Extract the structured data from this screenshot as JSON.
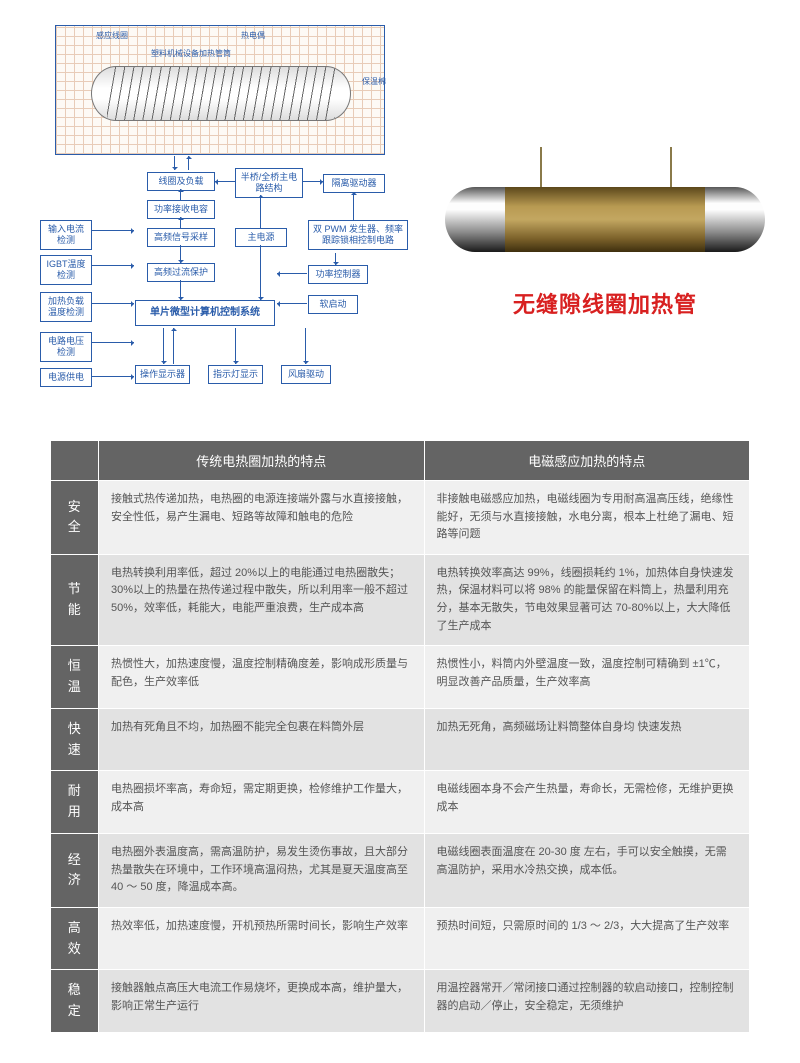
{
  "diagram": {
    "schematic": {
      "top_label_left": "感应线圈",
      "top_label_right": "热电偶",
      "inner_label": "塑料机械设备加热管筒",
      "right_label": "保温棉"
    },
    "blocks": {
      "coil_load": "线圈及负载",
      "bridge": "半桥/全桥主电路结构",
      "iso_drive": "隔离驱动器",
      "power_comp": "功率接收电容",
      "hf_sample": "高频信号采样",
      "main_power": "主电源",
      "pwm": "双 PWM 发生器、频率跟踪锁相控制电路",
      "input_current": "输入电流检测",
      "igbt_temp": "IGBT温度检测",
      "hf_protect": "高频过流保护",
      "power_ctrl": "功率控制器",
      "mcu": "单片微型计算机控制系统",
      "heat_temp": "加热负载温度检测",
      "soft_start": "软启动",
      "volt_detect": "电路电压检测",
      "power_supply": "电源供电",
      "display": "操作显示器",
      "led": "指示灯显示",
      "fan": "风扇驱动"
    }
  },
  "product": {
    "title": "无缝隙线圈加热管"
  },
  "table": {
    "headers": {
      "blank": "",
      "col1": "传统电热圈加热的特点",
      "col2": "电磁感应加热的特点"
    },
    "rows": [
      {
        "label": "安全",
        "a": "接触式热传递加热，电热圈的电源连接端外露与水直接接触，安全性低，易产生漏电、短路等故障和触电的危险",
        "b": "非接触电磁感应加热，电磁线圈为专用耐高温高压线，绝缘性能好，无须与水直接接触，水电分离，根本上杜绝了漏电、短路等问题"
      },
      {
        "label": "节能",
        "a": "电热转换利用率低，超过 20%以上的电能通过电热圈散失；30%以上的热量在热传递过程中散失，所以利用率一般不超过 50%，效率低，耗能大，电能严重浪费，生产成本高",
        "b": "电热转换效率高达 99%，线圈损耗约 1%，加热体自身快速发热，保温材料可以将 98% 的能量保留在料筒上，热量利用充分，基本无散失，节电效果显著可达 70-80%以上，大大降低了生产成本"
      },
      {
        "label": "恒温",
        "a": "热惯性大，加热速度慢，温度控制精确度差，影响成形质量与配色，生产效率低",
        "b": "热惯性小，料筒内外壁温度一致，温度控制可精确到 ±1℃，明显改善产品质量，生产效率高"
      },
      {
        "label": "快速",
        "a": "加热有死角且不均，加热圈不能完全包裹在料筒外层",
        "b": "加热无死角，高频磁场让料筒整体自身均 快速发热"
      },
      {
        "label": "耐用",
        "a": "电热圈损坏率高，寿命短，需定期更换，检修维护工作量大，成本高",
        "b": "电磁线圈本身不会产生热量，寿命长，无需检修，无维护更换成本"
      },
      {
        "label": "经济",
        "a": "电热圈外表温度高，需高温防护，易发生烫伤事故，且大部分热量散失在环境中，工作环境高温闷热，尤其是夏天温度高至 40 ～ 50 度，降温成本高。",
        "b": "电磁线圈表面温度在 20-30 度 左右，手可以安全触摸，无需高温防护，采用水冷热交换，成本低。"
      },
      {
        "label": "高效",
        "a": "热效率低，加热速度慢，开机预热所需时间长，影响生产效率",
        "b": "预热时间短，只需原时间的 1/3 ～ 2/3，大大提高了生产效率"
      },
      {
        "label": "稳定",
        "a": "接触器触点高压大电流工作易烧坏，更换成本高，维护量大，影响正常生产运行",
        "b": "用温控器常开／常闭接口通过控制器的软启动接口，控制控制器的启动／停止，安全稳定，无须维护"
      }
    ]
  }
}
